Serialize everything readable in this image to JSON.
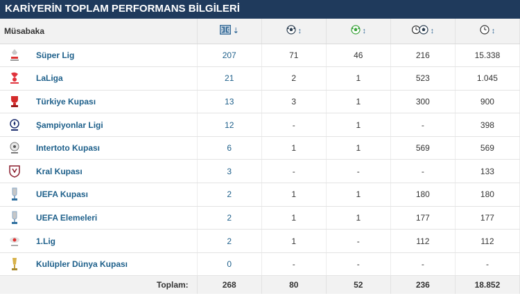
{
  "header": {
    "title": "KARİYERİN TOPLAM PERFORMANS BİLGİLERİ"
  },
  "columns": {
    "competition": "Müsabaka",
    "col1_icon": "appearances-icon",
    "col1_sort": "⇣",
    "col2_icon": "goals-icon",
    "col2_sort": "↕",
    "col3_icon": "assists-icon",
    "col3_sort": "↕",
    "col4_icon": "minutes-per-goal-icon",
    "col4_sort": "↕",
    "col5_icon": "minutes-icon",
    "col5_sort": "↕"
  },
  "rows": [
    {
      "name": "Süper Lig",
      "logo": "super-lig-logo",
      "apps": "207",
      "goals": "71",
      "assists": "46",
      "min_per_goal": "216",
      "minutes": "15.338"
    },
    {
      "name": "LaLiga",
      "logo": "laliga-logo",
      "apps": "21",
      "goals": "2",
      "assists": "1",
      "min_per_goal": "523",
      "minutes": "1.045"
    },
    {
      "name": "Türkiye Kupası",
      "logo": "turkiye-kupasi-logo",
      "apps": "13",
      "goals": "3",
      "assists": "1",
      "min_per_goal": "300",
      "minutes": "900"
    },
    {
      "name": "Şampiyonlar Ligi",
      "logo": "champions-league-logo",
      "apps": "12",
      "goals": "-",
      "assists": "1",
      "min_per_goal": "-",
      "minutes": "398"
    },
    {
      "name": "Intertoto Kupası",
      "logo": "intertoto-logo",
      "apps": "6",
      "goals": "1",
      "assists": "1",
      "min_per_goal": "569",
      "minutes": "569"
    },
    {
      "name": "Kral Kupası",
      "logo": "kral-kupasi-logo",
      "apps": "3",
      "goals": "-",
      "assists": "-",
      "min_per_goal": "-",
      "minutes": "133"
    },
    {
      "name": "UEFA Kupası",
      "logo": "uefa-cup-logo",
      "apps": "2",
      "goals": "1",
      "assists": "1",
      "min_per_goal": "180",
      "minutes": "180"
    },
    {
      "name": "UEFA Elemeleri",
      "logo": "uefa-qualifiers-logo",
      "apps": "2",
      "goals": "1",
      "assists": "1",
      "min_per_goal": "177",
      "minutes": "177"
    },
    {
      "name": "1.Lig",
      "logo": "1-lig-logo",
      "apps": "2",
      "goals": "1",
      "assists": "-",
      "min_per_goal": "112",
      "minutes": "112"
    },
    {
      "name": "Kulüpler Dünya Kupası",
      "logo": "club-world-cup-logo",
      "apps": "0",
      "goals": "-",
      "assists": "-",
      "min_per_goal": "-",
      "minutes": "-"
    }
  ],
  "totals": {
    "label": "Toplam:",
    "apps": "268",
    "goals": "80",
    "assists": "52",
    "min_per_goal": "236",
    "minutes": "18.852"
  },
  "colors": {
    "header_bg": "#1f3a5c",
    "link": "#1d5f8a",
    "row_border": "#e3e3e3",
    "head_bg": "#f2f2f2"
  }
}
